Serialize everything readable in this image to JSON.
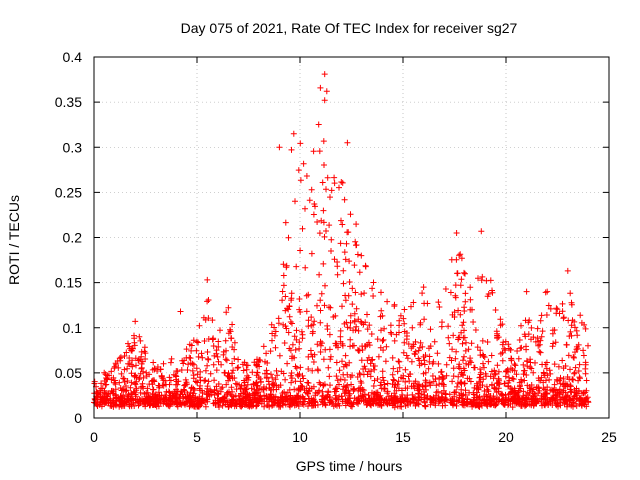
{
  "chart_data": {
    "type": "scatter",
    "title": "Day 075 of 2021, Rate Of TEC Index for receiver sg27",
    "xlabel": "GPS time / hours",
    "ylabel": "ROTI / TECUs",
    "xlim": [
      0,
      25
    ],
    "ylim": [
      0,
      0.4
    ],
    "x_ticks": [
      0,
      5,
      10,
      15,
      20,
      25
    ],
    "y_ticks": [
      0,
      0.05,
      0.1,
      0.15,
      0.2,
      0.25,
      0.3,
      0.35,
      0.4
    ],
    "x_tick_labels": [
      "0",
      "5",
      "10",
      "15",
      "20",
      "25"
    ],
    "y_tick_labels": [
      "0",
      "0.05",
      "0.1",
      "0.15",
      "0.2",
      "0.25",
      "0.3",
      "0.35",
      "0.4"
    ],
    "grid": true,
    "legend": "none",
    "marker": "plus",
    "color": "#ff0000",
    "x_data_range": [
      0,
      24
    ],
    "envelope": {
      "x": [
        0,
        1,
        2,
        3,
        4,
        5,
        5.5,
        6,
        6.5,
        7,
        7.5,
        8,
        8.5,
        9,
        9.5,
        10,
        10.5,
        11,
        11.5,
        12,
        12.5,
        13,
        13.5,
        14,
        15,
        16,
        16.5,
        17,
        17.5,
        18,
        18.5,
        19,
        19.5,
        20,
        20.5,
        21,
        21.5,
        22,
        22.5,
        23,
        23.5,
        24
      ],
      "y": [
        0.045,
        0.06,
        0.1,
        0.06,
        0.07,
        0.09,
        0.15,
        0.1,
        0.13,
        0.07,
        0.06,
        0.07,
        0.1,
        0.12,
        0.3,
        0.31,
        0.26,
        0.38,
        0.29,
        0.3,
        0.25,
        0.19,
        0.16,
        0.14,
        0.12,
        0.14,
        0.12,
        0.14,
        0.2,
        0.17,
        0.15,
        0.2,
        0.12,
        0.1,
        0.08,
        0.14,
        0.1,
        0.15,
        0.12,
        0.16,
        0.13,
        0.11
      ]
    },
    "peak_points": [
      {
        "x": 11.2,
        "y": 0.381
      },
      {
        "x": 11.3,
        "y": 0.362
      },
      {
        "x": 11.2,
        "y": 0.352
      },
      {
        "x": 9.7,
        "y": 0.315
      },
      {
        "x": 9.0,
        "y": 0.3
      },
      {
        "x": 12.3,
        "y": 0.305
      },
      {
        "x": 18.8,
        "y": 0.207
      },
      {
        "x": 17.6,
        "y": 0.205
      },
      {
        "x": 5.5,
        "y": 0.153
      },
      {
        "x": 23.0,
        "y": 0.163
      },
      {
        "x": 4.2,
        "y": 0.118
      },
      {
        "x": 2.0,
        "y": 0.107
      },
      {
        "x": 21.0,
        "y": 0.14
      },
      {
        "x": 22.0,
        "y": 0.14
      },
      {
        "x": 16.0,
        "y": 0.145
      }
    ]
  }
}
